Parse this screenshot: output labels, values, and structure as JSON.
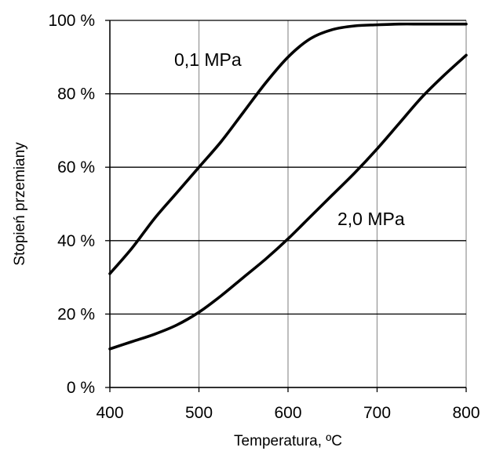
{
  "chart_data": {
    "type": "line",
    "xlabel": "Temperatura, ºC",
    "ylabel": "Stopień przemiany",
    "xlim": [
      400,
      800
    ],
    "ylim": [
      0,
      100
    ],
    "x_ticks": [
      "400",
      "500",
      "600",
      "700",
      "800"
    ],
    "y_ticks": [
      "0 %",
      "20 %",
      "40 %",
      "60 %",
      "80 %",
      "100 %"
    ],
    "grid": true,
    "series": [
      {
        "name": "0,1 MPa",
        "x": [
          400,
          425,
          450,
          475,
          500,
          525,
          550,
          575,
          600,
          625,
          650,
          675,
          700,
          725,
          750,
          775,
          800
        ],
        "y": [
          31,
          38,
          46,
          53,
          60,
          67,
          75,
          83,
          90,
          95,
          97.5,
          98.5,
          98.8,
          99,
          99,
          99,
          99
        ]
      },
      {
        "name": "2,0 MPa",
        "x": [
          400,
          425,
          450,
          475,
          500,
          525,
          550,
          575,
          600,
          625,
          650,
          675,
          700,
          725,
          750,
          775,
          800
        ],
        "y": [
          10.5,
          12.5,
          14.5,
          17,
          20.5,
          25,
          30,
          35,
          40.5,
          46.5,
          52.5,
          58.5,
          65,
          72,
          79,
          85,
          90.5
        ]
      }
    ]
  }
}
